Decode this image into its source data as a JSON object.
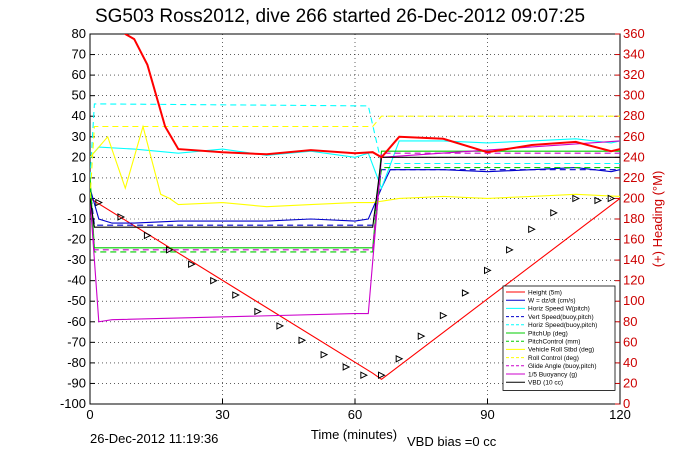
{
  "chart_data": {
    "type": "line",
    "title": "SG503 Ross2012, dive 266 started 26-Dec-2012 09:07:25",
    "xlabel": "Time (minutes)",
    "ylabel_right": "(+) Heading (°M)",
    "xlim": [
      0,
      120
    ],
    "ylim": [
      -100,
      80
    ],
    "ylim_right": [
      0,
      360
    ],
    "xticks": [
      0,
      30,
      60,
      90,
      120
    ],
    "yticks": [
      80,
      70,
      60,
      50,
      40,
      30,
      20,
      10,
      0,
      -10,
      -20,
      -30,
      -40,
      -50,
      -60,
      -70,
      -80,
      -90,
      -100
    ],
    "yticks_right": [
      360,
      340,
      320,
      300,
      280,
      260,
      240,
      220,
      200,
      180,
      160,
      140,
      120,
      100,
      80,
      60,
      40,
      20,
      0
    ],
    "grid": true,
    "legend_position": "bottom-right",
    "footer_left": "26-Dec-2012 11:19:36",
    "footer_right": "VBD bias =0 cc",
    "series": [
      {
        "name": "Height (5m)",
        "color": "#ff0000",
        "x": [
          0,
          64,
          66,
          120
        ],
        "y": [
          0,
          -85,
          -88,
          0
        ]
      },
      {
        "name": "W = dz/dt (cm/s)",
        "color": "#0000cc",
        "x": [
          0,
          2,
          5,
          10,
          20,
          30,
          40,
          50,
          60,
          63,
          66,
          68,
          70,
          80,
          90,
          100,
          110,
          118,
          120
        ],
        "y": [
          5,
          -10,
          -12,
          -12,
          -11,
          -11,
          -11,
          -10,
          -11,
          -10,
          5,
          14,
          14,
          14,
          13,
          14,
          15,
          13,
          14
        ]
      },
      {
        "name": "Horiz Speed W(pitch)",
        "color": "#00ffff",
        "x": [
          0,
          2,
          10,
          20,
          30,
          40,
          50,
          60,
          63,
          66,
          70,
          80,
          90,
          100,
          110,
          118,
          120
        ],
        "y": [
          20,
          25,
          24,
          22,
          24,
          21,
          23,
          20,
          22,
          5,
          28,
          28,
          27,
          28,
          29,
          27,
          28
        ]
      },
      {
        "name": "Vert Speed(buoy,pitch)",
        "color": "#0000cc",
        "dash": "6,4",
        "x": [
          0,
          1,
          64,
          66,
          120
        ],
        "y": [
          5,
          -13,
          -13,
          14,
          14
        ]
      },
      {
        "name": "Horiz Speed(buoy,pitch)",
        "color": "#00ffff",
        "dash": "6,4",
        "x": [
          0,
          1,
          63,
          66,
          120
        ],
        "y": [
          10,
          46,
          45,
          17,
          17
        ]
      },
      {
        "name": "PitchUp (deg)",
        "color": "#00cc00",
        "x": [
          0,
          1,
          64,
          66,
          120
        ],
        "y": [
          10,
          -24,
          -24,
          23,
          23
        ]
      },
      {
        "name": "PitchControl (mm)",
        "color": "#00cc00",
        "dash": "6,4",
        "x": [
          0,
          1,
          64,
          66,
          120
        ],
        "y": [
          10,
          -26,
          -26,
          15,
          15
        ]
      },
      {
        "name": "Vehicle Roll Stbd (deg)",
        "color": "#ffff00",
        "x": [
          0,
          4,
          8,
          12,
          16,
          18,
          20,
          30,
          40,
          50,
          60,
          64,
          70,
          80,
          90,
          100,
          110,
          120
        ],
        "y": [
          20,
          30,
          5,
          35,
          2,
          0,
          -3,
          -2,
          -4,
          -3,
          -2,
          -2,
          0,
          1,
          0,
          1,
          2,
          1
        ]
      },
      {
        "name": "Roll Control (deg)",
        "color": "#ffff00",
        "dash": "6,4",
        "x": [
          0,
          1,
          64,
          66,
          120
        ],
        "y": [
          0,
          35,
          35,
          40,
          40
        ]
      },
      {
        "name": "Glide Angle (buoy,pitch)",
        "color": "#cc00cc",
        "dash": "6,4",
        "x": [
          0,
          1,
          64,
          66,
          120
        ],
        "y": [
          0,
          -25,
          -25,
          22,
          22
        ]
      },
      {
        "name": "1/5 Buoyancy (g)",
        "color": "#cc00cc",
        "x": [
          0,
          2,
          5,
          60,
          63,
          66,
          120
        ],
        "y": [
          0,
          -60,
          -59,
          -56,
          -56,
          20,
          28
        ]
      },
      {
        "name": "VBD (10 cc)",
        "color": "#000000",
        "x": [
          0,
          1,
          64,
          66,
          120
        ],
        "y": [
          0,
          -14,
          -14,
          20,
          20
        ]
      },
      {
        "name": "Heading",
        "color": "#ff0000",
        "axis": "right",
        "x": [
          0,
          8,
          10,
          13,
          17,
          20,
          30,
          40,
          50,
          60,
          64,
          66,
          70,
          80,
          90,
          100,
          110,
          118,
          120
        ],
        "y": [
          430,
          360,
          355,
          330,
          270,
          248,
          245,
          243,
          247,
          244,
          245,
          240,
          260,
          258,
          245,
          252,
          255,
          246,
          248
        ]
      }
    ],
    "markers": {
      "name": "Height markers",
      "color": "#000000",
      "x": [
        2,
        7,
        13,
        18,
        23,
        28,
        33,
        38,
        43,
        48,
        53,
        58,
        62,
        66,
        70,
        75,
        80,
        85,
        90,
        95,
        100,
        105,
        110,
        115,
        118
      ],
      "y": [
        -2,
        -9,
        -18,
        -25,
        -32,
        -40,
        -47,
        -55,
        -62,
        -69,
        -76,
        -82,
        -86,
        -86,
        -78,
        -67,
        -57,
        -46,
        -35,
        -25,
        -15,
        -7,
        0,
        -1,
        0
      ]
    }
  }
}
